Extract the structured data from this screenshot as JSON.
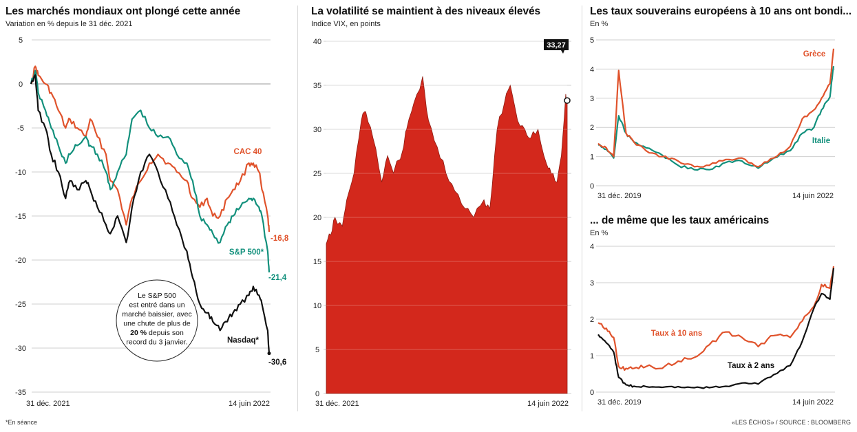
{
  "footnote": "*En séance",
  "source": "«LES ÉCHOS» / SOURCE : BLOOMBERG",
  "colors": {
    "cac": "#e0532c",
    "sp": "#12907c",
    "nasdaq": "#111111",
    "vix_fill": "#d3281c",
    "grece": "#e0532c",
    "italie": "#12907c",
    "us10": "#e0532c",
    "us2": "#111111"
  },
  "chart_data": [
    {
      "type": "line",
      "title": "Les marchés mondiaux ont plongé cette année",
      "subtitle": "Variation en % depuis le 31 déc. 2021",
      "x_labels": [
        "31 déc. 2021",
        "14 juin 2022"
      ],
      "x": [
        "2021-12-31",
        "2022-01-03",
        "2022-01-05",
        "2022-01-10",
        "2022-01-14",
        "2022-01-19",
        "2022-01-24",
        "2022-01-27",
        "2022-02-01",
        "2022-02-07",
        "2022-02-10",
        "2022-02-15",
        "2022-02-21",
        "2022-02-24",
        "2022-03-01",
        "2022-03-07",
        "2022-03-11",
        "2022-03-17",
        "2022-03-23",
        "2022-03-29",
        "2022-04-05",
        "2022-04-11",
        "2022-04-18",
        "2022-04-22",
        "2022-04-27",
        "2022-05-02",
        "2022-05-06",
        "2022-05-11",
        "2022-05-16",
        "2022-05-20",
        "2022-05-25",
        "2022-05-31",
        "2022-06-03",
        "2022-06-07",
        "2022-06-09",
        "2022-06-13",
        "2022-06-14"
      ],
      "series": [
        {
          "name": "CAC 40",
          "values": [
            0,
            2,
            1,
            0,
            -1,
            -3,
            -5,
            -4,
            -5,
            -6,
            -4,
            -6,
            -8,
            -11,
            -12,
            -16,
            -13,
            -11,
            -9,
            -8,
            -9,
            -10,
            -11,
            -13,
            -14,
            -13,
            -15,
            -15,
            -13,
            -12,
            -11,
            -9,
            -9,
            -10,
            -12,
            -15,
            -16.8
          ]
        },
        {
          "name": "S&P 500*",
          "values": [
            0,
            1.5,
            -1,
            -3,
            -5,
            -7,
            -9,
            -8,
            -7,
            -6,
            -7,
            -8,
            -10,
            -12,
            -10,
            -8,
            -4,
            -3,
            -5,
            -6,
            -6,
            -8,
            -9,
            -11,
            -15,
            -16,
            -17,
            -18,
            -16,
            -15,
            -14,
            -13,
            -13,
            -14,
            -15,
            -19,
            -21.4
          ]
        },
        {
          "name": "Nasdaq*",
          "values": [
            0,
            1,
            -3,
            -5,
            -8,
            -10,
            -13,
            -11,
            -12,
            -11,
            -12,
            -14,
            -16,
            -17,
            -15,
            -18,
            -14,
            -10,
            -8,
            -10,
            -13,
            -16,
            -19,
            -22,
            -25,
            -26,
            -27,
            -28,
            -27,
            -26,
            -25,
            -24,
            -23,
            -24,
            -25,
            -28,
            -30.6
          ]
        }
      ],
      "end_labels": [
        "-16,8",
        "-21,4",
        "-30,6"
      ],
      "ylim": [
        -35,
        5
      ],
      "yticks": [
        5,
        0,
        -5,
        -10,
        -15,
        -20,
        -25,
        -30,
        -35
      ],
      "annotation": [
        "Le S&P 500",
        "est entré dans un",
        "marché baissier, avec",
        "une chute de plus de",
        "20 % depuis son",
        "record du 3 janvier."
      ],
      "annotation_bold": "20 %"
    },
    {
      "type": "area",
      "title": "La volatilité se maintient à des niveaux élevés",
      "subtitle": "Indice VIX, en points",
      "x_labels": [
        "31 déc. 2021",
        "14 juin 2022"
      ],
      "x": [
        "2021-12-31",
        "2022-01-03",
        "2022-01-06",
        "2022-01-11",
        "2022-01-14",
        "2022-01-19",
        "2022-01-24",
        "2022-01-27",
        "2022-02-01",
        "2022-02-07",
        "2022-02-11",
        "2022-02-15",
        "2022-02-22",
        "2022-02-24",
        "2022-03-01",
        "2022-03-07",
        "2022-03-11",
        "2022-03-17",
        "2022-03-23",
        "2022-03-29",
        "2022-04-05",
        "2022-04-11",
        "2022-04-18",
        "2022-04-22",
        "2022-04-27",
        "2022-05-02",
        "2022-05-06",
        "2022-05-11",
        "2022-05-16",
        "2022-05-20",
        "2022-05-25",
        "2022-05-31",
        "2022-06-03",
        "2022-06-07",
        "2022-06-10",
        "2022-06-13",
        "2022-06-14"
      ],
      "values": [
        17,
        18,
        20,
        19,
        22,
        25,
        31,
        32,
        29,
        24,
        27,
        25,
        28,
        30,
        33,
        36,
        31,
        28,
        25,
        23,
        21,
        20,
        22,
        21,
        30,
        33,
        35,
        31,
        30,
        29,
        30,
        26,
        25,
        24,
        27,
        34,
        33.27
      ],
      "end_label": "33,27",
      "ylim": [
        0,
        40
      ],
      "yticks": [
        40,
        35,
        30,
        25,
        20,
        15,
        10,
        5,
        0
      ]
    },
    {
      "type": "line",
      "title": "Les taux souverains européens à 10 ans ont bondi...",
      "subtitle": "En %",
      "x_labels": [
        "31 déc. 2019",
        "14 juin 2022"
      ],
      "x": [
        "2019-12-31",
        "2020-01-31",
        "2020-02-28",
        "2020-03-18",
        "2020-04-15",
        "2020-05-15",
        "2020-06-30",
        "2020-08-31",
        "2020-10-30",
        "2020-12-31",
        "2021-02-26",
        "2021-04-30",
        "2021-06-30",
        "2021-08-31",
        "2021-10-29",
        "2021-12-31",
        "2022-02-15",
        "2022-03-31",
        "2022-04-29",
        "2022-05-31",
        "2022-06-14"
      ],
      "series": [
        {
          "name": "Grèce",
          "values": [
            1.45,
            1.3,
            1.0,
            3.95,
            1.8,
            1.5,
            1.2,
            1.0,
            0.85,
            0.65,
            0.7,
            0.9,
            0.95,
            0.65,
            0.95,
            1.35,
            2.3,
            2.6,
            3.0,
            3.5,
            4.7
          ]
        },
        {
          "name": "Italie",
          "values": [
            1.4,
            1.25,
            0.95,
            2.4,
            1.8,
            1.5,
            1.3,
            1.05,
            0.7,
            0.55,
            0.55,
            0.8,
            0.85,
            0.6,
            0.95,
            1.2,
            1.8,
            2.0,
            2.6,
            3.05,
            4.1
          ]
        }
      ],
      "ylim": [
        0,
        5
      ],
      "yticks": [
        5,
        4,
        3,
        2,
        1,
        0
      ]
    },
    {
      "type": "line",
      "title": "... de même que les taux américains",
      "subtitle": "En %",
      "x_labels": [
        "31 déc. 2019",
        "14 juin 2022"
      ],
      "x": [
        "2019-12-31",
        "2020-01-31",
        "2020-02-28",
        "2020-03-18",
        "2020-04-15",
        "2020-05-15",
        "2020-06-30",
        "2020-08-31",
        "2020-10-30",
        "2020-12-31",
        "2021-02-26",
        "2021-04-30",
        "2021-06-30",
        "2021-08-31",
        "2021-10-29",
        "2021-12-31",
        "2022-02-15",
        "2022-03-31",
        "2022-04-29",
        "2022-05-31",
        "2022-06-14"
      ],
      "series": [
        {
          "name": "Taux à 10 ans",
          "values": [
            1.9,
            1.75,
            1.5,
            0.7,
            0.65,
            0.65,
            0.7,
            0.65,
            0.85,
            0.95,
            1.3,
            1.65,
            1.5,
            1.25,
            1.55,
            1.5,
            1.95,
            2.35,
            2.95,
            2.85,
            3.45
          ]
        },
        {
          "name": "Taux à 2 ans",
          "values": [
            1.58,
            1.35,
            1.1,
            0.4,
            0.2,
            0.16,
            0.15,
            0.13,
            0.15,
            0.12,
            0.12,
            0.16,
            0.25,
            0.22,
            0.48,
            0.73,
            1.4,
            2.3,
            2.7,
            2.55,
            3.4
          ]
        }
      ],
      "ylim": [
        0,
        4
      ],
      "yticks": [
        4,
        3,
        2,
        1,
        0
      ]
    }
  ]
}
